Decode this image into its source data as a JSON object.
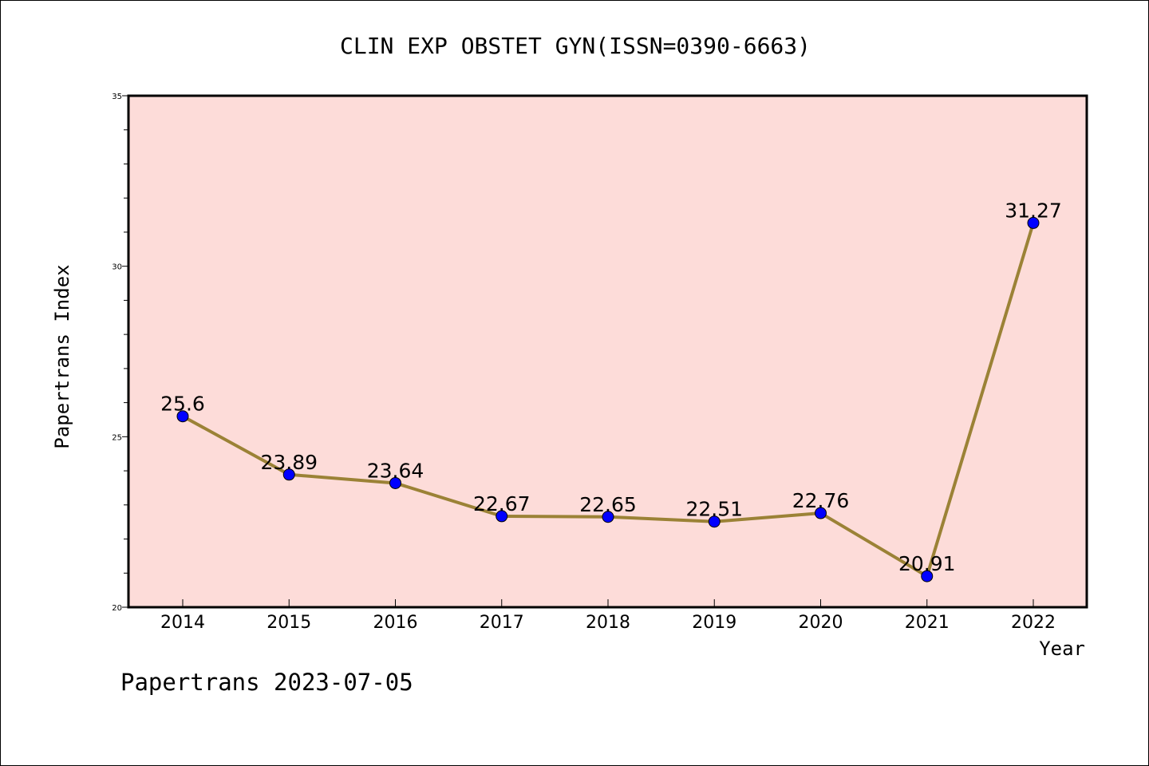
{
  "chart_data": {
    "type": "line",
    "title": "CLIN EXP OBSTET GYN(ISSN=0390-6663)",
    "xlabel": "Year",
    "ylabel": "Papertrans Index",
    "categories": [
      "2014",
      "2015",
      "2016",
      "2017",
      "2018",
      "2019",
      "2020",
      "2021",
      "2022"
    ],
    "series": [
      {
        "values": [
          25.6,
          23.89,
          23.64,
          22.67,
          22.65,
          22.51,
          22.76,
          20.91,
          31.27
        ],
        "labels": [
          "25.6",
          "23.89",
          "23.64",
          "22.67",
          "22.65",
          "22.51",
          "22.76",
          "20.91",
          "31.27"
        ]
      }
    ],
    "ylim": [
      20,
      35
    ],
    "yticks": [
      "20",
      "25",
      "30",
      "35"
    ],
    "grid": false,
    "legend": "none",
    "colors": {
      "plot_background": "#fddcd9",
      "line": "#9b8236",
      "marker": "#0000ff"
    }
  },
  "footer": "Papertrans 2023-07-05"
}
